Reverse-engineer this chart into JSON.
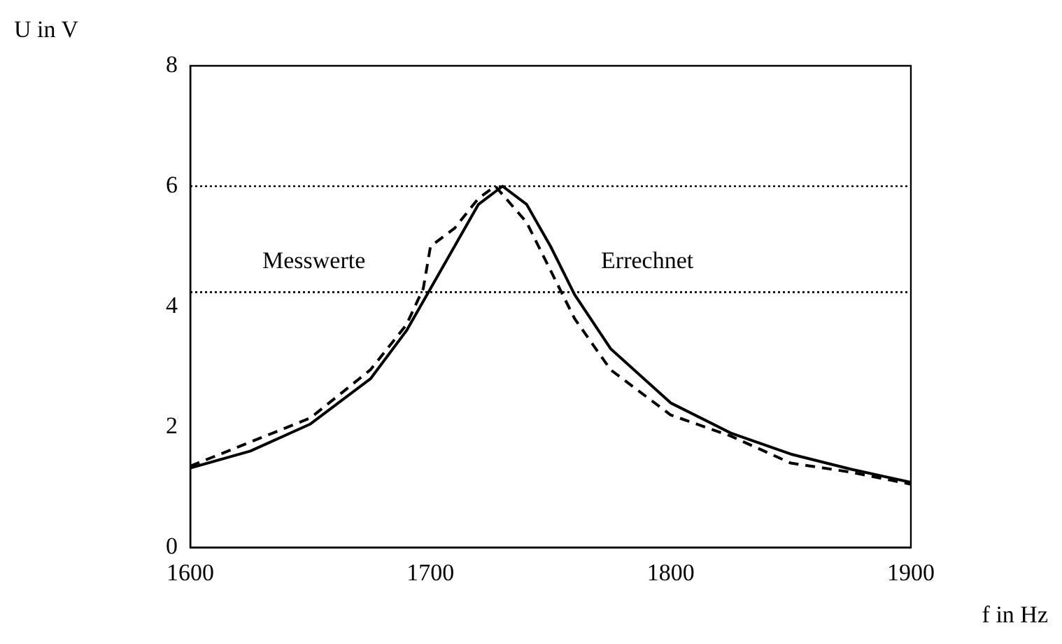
{
  "chart_data": {
    "type": "line",
    "xlabel": "f in Hz",
    "ylabel": "U in V",
    "xlim": [
      1600,
      1900
    ],
    "xticks": [
      1600,
      1700,
      1800,
      1900
    ],
    "ylim": [
      0,
      8
    ],
    "yticks": [
      0,
      2,
      4,
      6,
      8
    ],
    "grid": false,
    "legend": false,
    "marker": "none",
    "ref_lines": [
      {
        "axis": "y",
        "value": 6,
        "color": "#000000",
        "line_style": "dotted"
      },
      {
        "axis": "y",
        "value": 4.24,
        "color": "#000000",
        "line_style": "dotted"
      }
    ],
    "series": [
      {
        "name": "Messwerte",
        "color": "#000000",
        "line_style": "dashed",
        "x": [
          1600,
          1625,
          1650,
          1675,
          1690,
          1697,
          1700,
          1710,
          1720,
          1727,
          1740,
          1750,
          1760,
          1775,
          1800,
          1825,
          1850,
          1875,
          1900
        ],
        "values": [
          1.35,
          1.75,
          2.15,
          2.95,
          3.7,
          4.3,
          5.0,
          5.3,
          5.8,
          6.0,
          5.4,
          4.6,
          3.8,
          2.95,
          2.2,
          1.85,
          1.4,
          1.25,
          1.05
        ]
      },
      {
        "name": "Errechnet",
        "color": "#000000",
        "line_style": "solid",
        "x": [
          1600,
          1625,
          1650,
          1675,
          1690,
          1700,
          1710,
          1720,
          1730,
          1740,
          1750,
          1760,
          1775,
          1800,
          1825,
          1850,
          1875,
          1900
        ],
        "values": [
          1.32,
          1.6,
          2.05,
          2.8,
          3.6,
          4.3,
          5.0,
          5.7,
          6.0,
          5.7,
          5.0,
          4.2,
          3.3,
          2.4,
          1.9,
          1.55,
          1.3,
          1.08
        ]
      }
    ]
  }
}
